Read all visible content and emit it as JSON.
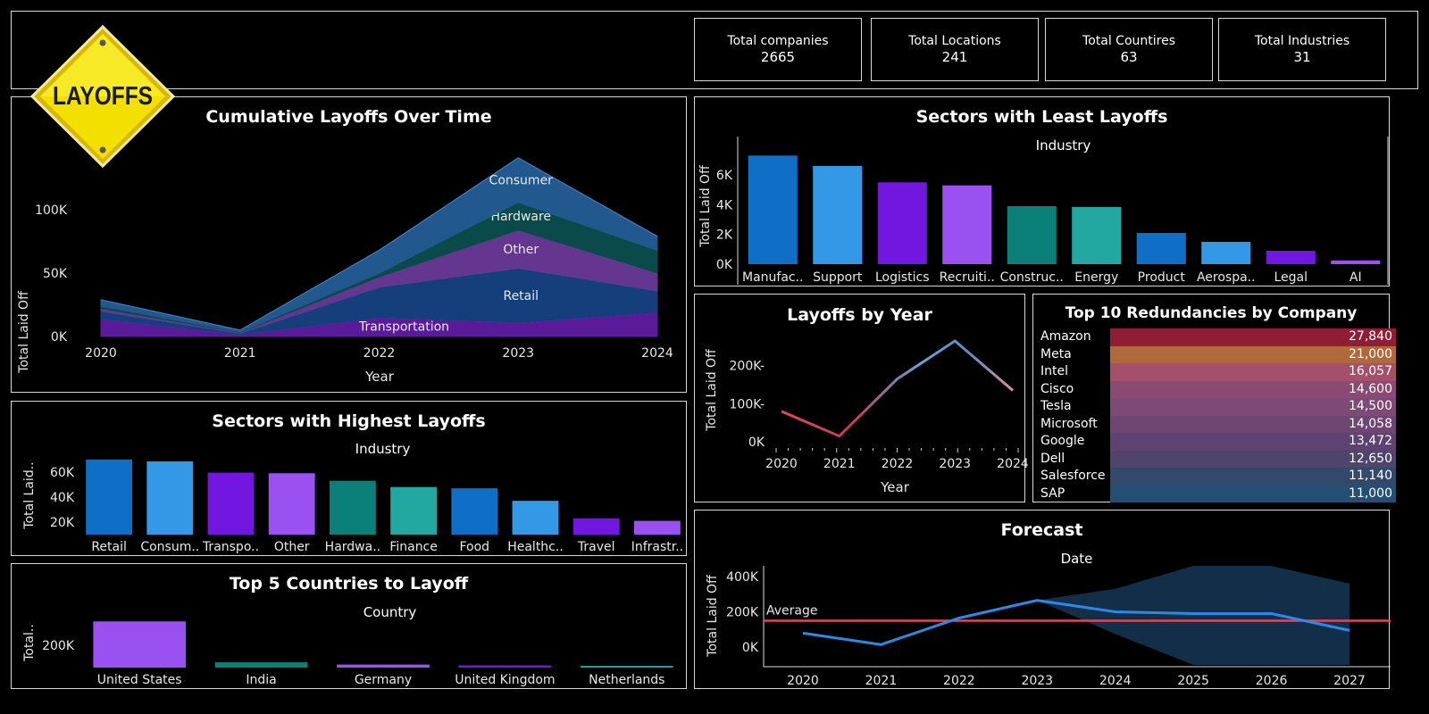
{
  "logo": {
    "text": "LAYOFFS"
  },
  "kpis": [
    {
      "label": "Total companies",
      "value": "2665"
    },
    {
      "label": "Total Locations",
      "value": "241"
    },
    {
      "label": "Total Countires",
      "value": "63"
    },
    {
      "label": "Total Industries",
      "value": "31"
    }
  ],
  "titles": {
    "cumulative": "Cumulative Layoffs Over Time",
    "least": "Sectors with Least Layoffs",
    "highest": "Sectors with Highest Layoffs",
    "byYear": "Layoffs by Year",
    "topCompanies": "Top 10 Redundancies by Company",
    "countries": "Top 5 Countries to Layoff",
    "forecast": "Forecast"
  },
  "colors": {
    "blue": "#0f6fc6",
    "lightBlue": "#3399e6",
    "purple": "#7217e0",
    "lilac": "#9b50f2",
    "teal": "#0a8078",
    "aqua": "#22a8a0",
    "average": "#e0485a"
  },
  "chart_data": [
    {
      "id": "cumulative",
      "type": "area",
      "title": "Cumulative Layoffs Over Time",
      "xlabel": "Year",
      "ylabel": "Total Laid Off",
      "x": [
        "2020",
        "2021",
        "2022",
        "2023",
        "2024"
      ],
      "ylim": [
        0,
        150000
      ],
      "yticks": [
        "0K",
        "50K",
        "100K"
      ],
      "yticksVal": [
        0,
        50000,
        100000
      ],
      "series": [
        {
          "name": "Transportation",
          "values": [
            14000,
            1500,
            15000,
            11000,
            19000
          ],
          "color": "#5a1a9a"
        },
        {
          "name": "Retail",
          "values": [
            6000,
            1000,
            24000,
            43000,
            17000
          ],
          "color": "#143f7a"
        },
        {
          "name": "Other",
          "values": [
            2000,
            500,
            8000,
            30000,
            14000
          ],
          "color": "#65368f"
        },
        {
          "name": "Hardware",
          "values": [
            2000,
            500,
            3000,
            22000,
            18000
          ],
          "color": "#0a4a4a"
        },
        {
          "name": "Consumer",
          "values": [
            5000,
            1500,
            18000,
            35000,
            11000
          ],
          "color": "#21588e"
        }
      ]
    },
    {
      "id": "least",
      "type": "bar",
      "title": "Sectors with Least Layoffs",
      "xlabel": "Industry",
      "ylabel": "Total Laid Off",
      "categories": [
        "Manufac..",
        "Support",
        "Logistics",
        "Recruiti..",
        "Construc..",
        "Energy",
        "Product",
        "Aerospa..",
        "Legal",
        "AI"
      ],
      "values": [
        7300,
        6600,
        5500,
        5300,
        3900,
        3850,
        2100,
        1500,
        900,
        250
      ],
      "ylim": [
        0,
        7500
      ],
      "yticks": [
        "0K",
        "2K",
        "4K",
        "6K"
      ],
      "yticksVal": [
        0,
        2000,
        4000,
        6000
      ]
    },
    {
      "id": "highest",
      "type": "bar",
      "title": "Sectors with Highest Layoffs",
      "xlabel": "Industry",
      "ylabel": "Total Laid..",
      "categories": [
        "Retail",
        "Consum..",
        "Transpo..",
        "Other",
        "Hardwa..",
        "Finance",
        "Food",
        "Healthc..",
        "Travel",
        "Infrastr.."
      ],
      "values": [
        70000,
        68500,
        59500,
        59000,
        53000,
        48000,
        47000,
        37000,
        23000,
        21000
      ],
      "ylim": [
        10000,
        72000
      ],
      "yticks": [
        "20K",
        "40K",
        "60K"
      ],
      "yticksVal": [
        20000,
        40000,
        60000
      ]
    },
    {
      "id": "byYear",
      "type": "line",
      "title": "Layoffs by Year",
      "xlabel": "Year",
      "ylabel": "Total Laid Off",
      "x": [
        "2020",
        "2021",
        "2022",
        "2023",
        "2024"
      ],
      "values": [
        80000,
        15000,
        165000,
        265000,
        135000
      ],
      "ylim": [
        0,
        265000
      ],
      "yticks": [
        "0K",
        "100K",
        "200K"
      ],
      "yticksVal": [
        0,
        100000,
        200000
      ]
    },
    {
      "id": "topCompanies",
      "type": "table",
      "title": "Top 10 Redundancies by Company",
      "rows": [
        {
          "company": "Amazon",
          "value": "27,840",
          "color": "#8e1d35"
        },
        {
          "company": "Meta",
          "value": "21,000",
          "color": "#b0693a"
        },
        {
          "company": "Intel",
          "value": "16,057",
          "color": "#a4506a"
        },
        {
          "company": "Cisco",
          "value": "14,600",
          "color": "#8a4a72"
        },
        {
          "company": "Tesla",
          "value": "14,500",
          "color": "#7e4974"
        },
        {
          "company": "Microsoft",
          "value": "14,058",
          "color": "#6e4672"
        },
        {
          "company": "Google",
          "value": "13,472",
          "color": "#5e4370"
        },
        {
          "company": "Dell",
          "value": "12,650",
          "color": "#4e446c"
        },
        {
          "company": "Salesforce",
          "value": "11,140",
          "color": "#33486a"
        },
        {
          "company": "SAP",
          "value": "11,000",
          "color": "#244f72"
        }
      ]
    },
    {
      "id": "countries",
      "type": "bar",
      "title": "Top 5 Countries to Layoff",
      "xlabel": "Country",
      "ylabel": "Total..",
      "categories": [
        "United States",
        "India",
        "Germany",
        "United Kingdom",
        "Netherlands"
      ],
      "values": [
        410000,
        47000,
        27000,
        20000,
        15000
      ],
      "colors": [
        "#9b50f2",
        "#0a8078",
        "#9b50f2",
        "#7217e0",
        "#22a8a0"
      ],
      "ylim": [
        0,
        420000
      ],
      "yticks": [
        "200K"
      ],
      "yticksVal": [
        200000
      ]
    },
    {
      "id": "forecast",
      "type": "line",
      "title": "Forecast",
      "xlabel": "Date",
      "ylabel": "Total Laid Off",
      "x": [
        "2020",
        "2021",
        "2022",
        "2023",
        "2024",
        "2025",
        "2026",
        "2027"
      ],
      "values": [
        80000,
        15000,
        165000,
        265000,
        200000,
        190000,
        190000,
        95000
      ],
      "bandUpper": [
        null,
        null,
        null,
        265000,
        330000,
        460000,
        460000,
        360000
      ],
      "bandLower": [
        null,
        null,
        null,
        265000,
        75000,
        -100000,
        -100000,
        -100000
      ],
      "ylim": [
        -110000,
        460000
      ],
      "average": 150000,
      "averageLabel": "Average",
      "yticks": [
        "0K",
        "200K",
        "400K"
      ],
      "yticksVal": [
        0,
        200000,
        400000
      ]
    }
  ]
}
